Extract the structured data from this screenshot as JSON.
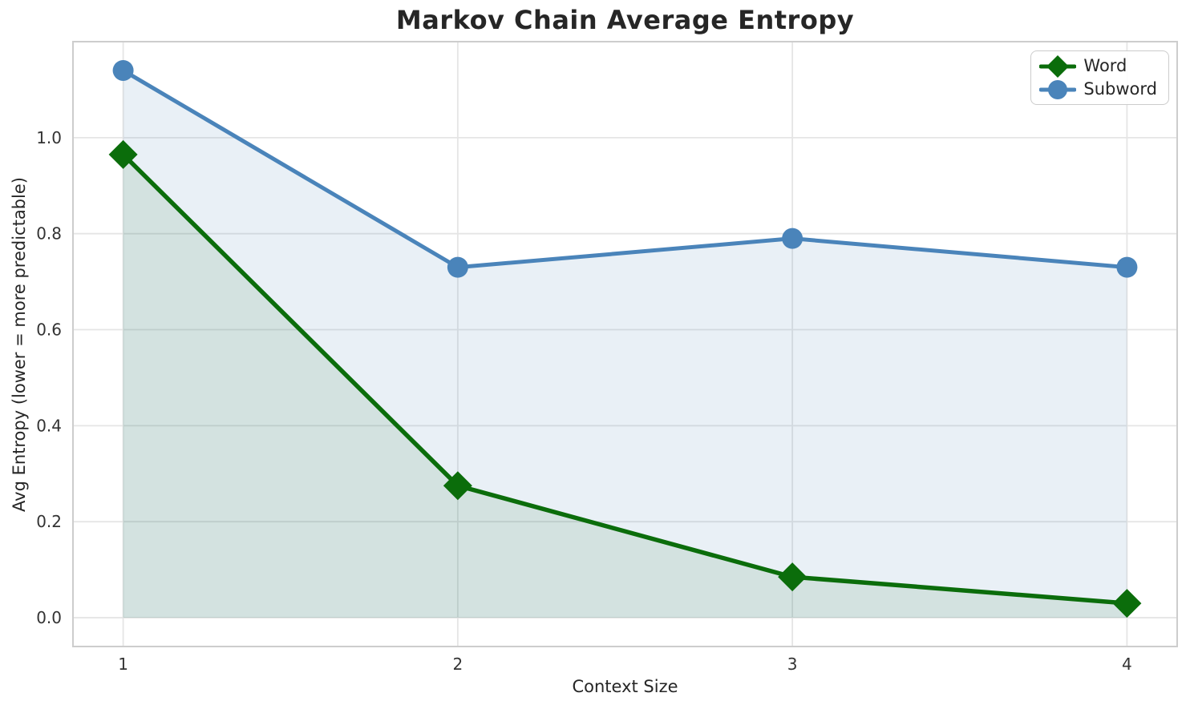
{
  "chart_data": {
    "type": "line",
    "title": "Markov Chain Average Entropy",
    "xlabel": "Context Size",
    "ylabel": "Avg Entropy (lower = more predictable)",
    "x": [
      1,
      2,
      3,
      4
    ],
    "series": [
      {
        "name": "Word",
        "values": [
          0.965,
          0.275,
          0.085,
          0.03
        ],
        "color": "#0b6d0b",
        "marker": "diamond",
        "fill_color": "rgba(11,109,11,0.10)",
        "line_width": 5.5
      },
      {
        "name": "Subword",
        "values": [
          1.14,
          0.73,
          0.79,
          0.73
        ],
        "color": "#4a84ba",
        "marker": "circle",
        "fill_color": "rgba(70,130,180,0.12)",
        "line_width": 5
      }
    ],
    "xticks": {
      "values": [
        1,
        2,
        3,
        4
      ],
      "labels": [
        "1",
        "2",
        "3",
        "4"
      ]
    },
    "yticks": {
      "values": [
        0,
        0.2,
        0.4,
        0.6,
        0.8,
        1.0
      ],
      "labels": [
        "0.0",
        "0.2",
        "0.4",
        "0.6",
        "0.8",
        "1.0"
      ]
    },
    "xlim": [
      0.85,
      4.15
    ],
    "ylim": [
      -0.06,
      1.2
    ],
    "grid": true,
    "legend_position": "upper right",
    "area_fill_baseline": 0
  },
  "colors": {
    "grid": "#e5e5e5",
    "spine": "#cdcdcd",
    "title_text": "#262626",
    "tick_text": "#333333",
    "background": "#ffffff"
  }
}
